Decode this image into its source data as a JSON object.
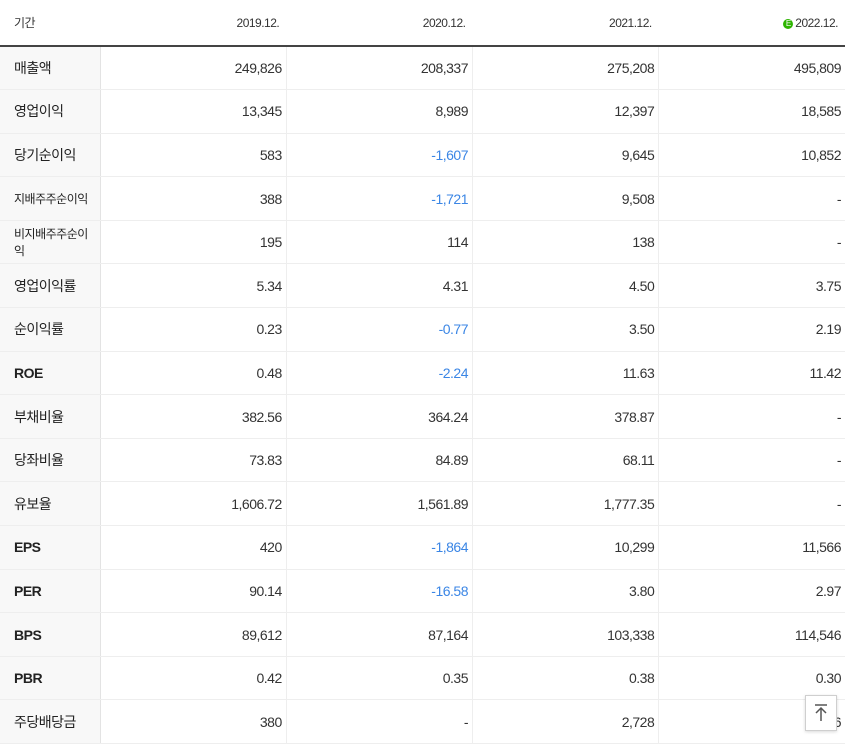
{
  "header": {
    "label": "기간",
    "periods": [
      "2019.12.",
      "2020.12.",
      "2021.12.",
      "2022.12."
    ],
    "estimate_mark": "E"
  },
  "rows": [
    {
      "label": "매출액",
      "values": [
        "249,826",
        "208,337",
        "275,208",
        "495,809"
      ]
    },
    {
      "label": "영업이익",
      "values": [
        "13,345",
        "8,989",
        "12,397",
        "18,585"
      ]
    },
    {
      "label": "당기순이익",
      "values": [
        "583",
        "-1,607",
        "9,645",
        "10,852"
      ]
    },
    {
      "label": "지배주주순이익",
      "values": [
        "388",
        "-1,721",
        "9,508",
        "-"
      ]
    },
    {
      "label": "비지배주주순이익",
      "values": [
        "195",
        "114",
        "138",
        "-"
      ]
    },
    {
      "label": "영업이익률",
      "values": [
        "5.34",
        "4.31",
        "4.50",
        "3.75"
      ]
    },
    {
      "label": "순이익률",
      "values": [
        "0.23",
        "-0.77",
        "3.50",
        "2.19"
      ]
    },
    {
      "label": "ROE",
      "values": [
        "0.48",
        "-2.24",
        "11.63",
        "11.42"
      ]
    },
    {
      "label": "부채비율",
      "values": [
        "382.56",
        "364.24",
        "378.87",
        "-"
      ]
    },
    {
      "label": "당좌비율",
      "values": [
        "73.83",
        "84.89",
        "68.11",
        "-"
      ]
    },
    {
      "label": "유보율",
      "values": [
        "1,606.72",
        "1,561.89",
        "1,777.35",
        "-"
      ]
    },
    {
      "label": "EPS",
      "values": [
        "420",
        "-1,864",
        "10,299",
        "11,566"
      ]
    },
    {
      "label": "PER",
      "values": [
        "90.14",
        "-16.58",
        "3.80",
        "2.97"
      ]
    },
    {
      "label": "BPS",
      "values": [
        "89,612",
        "87,164",
        "103,338",
        "114,546"
      ]
    },
    {
      "label": "PBR",
      "values": [
        "0.42",
        "0.35",
        "0.38",
        "0.30"
      ]
    },
    {
      "label": "주당배당금",
      "values": [
        "380",
        "-",
        "2,728",
        "1,776"
      ]
    }
  ],
  "colors": {
    "negative": "#3b86e5",
    "estimate_badge": "#2db400",
    "label_background": "#f8f8f8"
  },
  "scroll_top_icon": "arrow-up-icon"
}
